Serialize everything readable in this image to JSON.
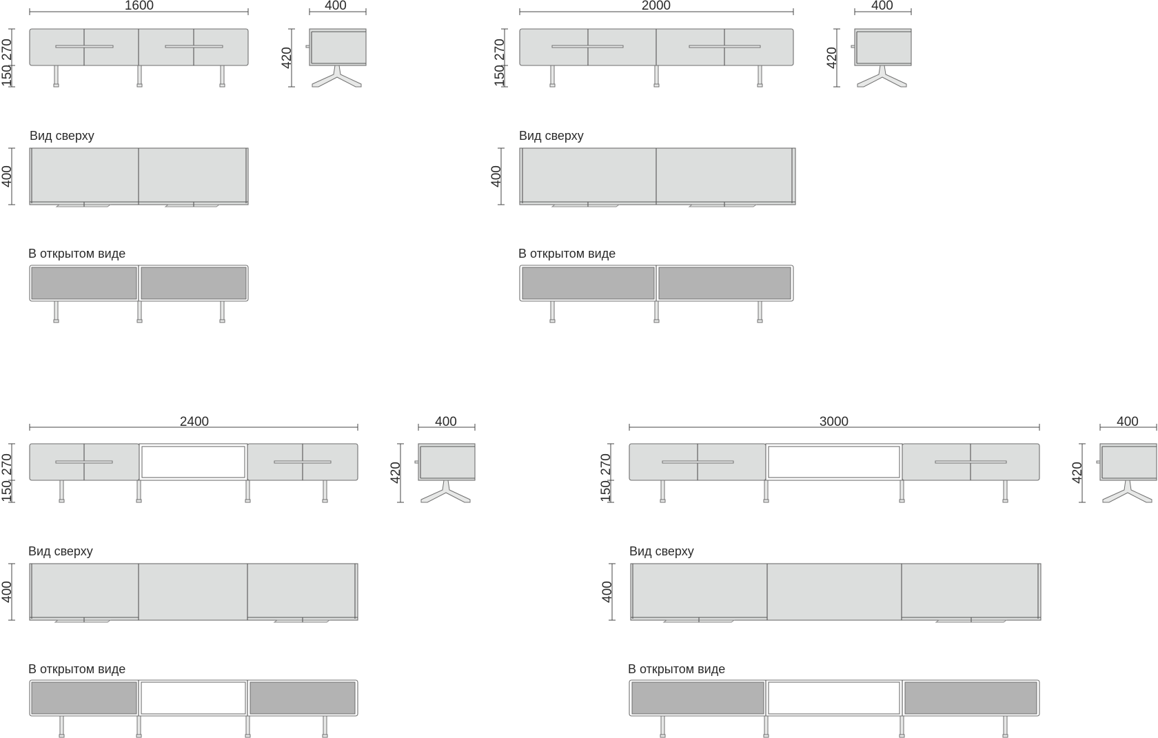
{
  "labels": {
    "top_view": "Вид сверху",
    "open_view": "В открытом виде"
  },
  "variants": [
    {
      "id": "1600",
      "width": "1600",
      "depth": "400",
      "height_total": "420",
      "body_height": "270",
      "leg_height": "150",
      "depth_top": "400"
    },
    {
      "id": "2000",
      "width": "2000",
      "depth": "400",
      "height_total": "420",
      "body_height": "270",
      "leg_height": "150",
      "depth_top": "400"
    },
    {
      "id": "2400",
      "width": "2400",
      "depth": "400",
      "height_total": "420",
      "body_height": "270",
      "leg_height": "150",
      "depth_top": "400"
    },
    {
      "id": "3000",
      "width": "3000",
      "depth": "400",
      "height_total": "420",
      "body_height": "270",
      "leg_height": "150",
      "depth_top": "400"
    }
  ],
  "colors": {
    "panel": "#dcdedd",
    "inner": "#b3b3b3",
    "line": "#6e6e6e"
  }
}
